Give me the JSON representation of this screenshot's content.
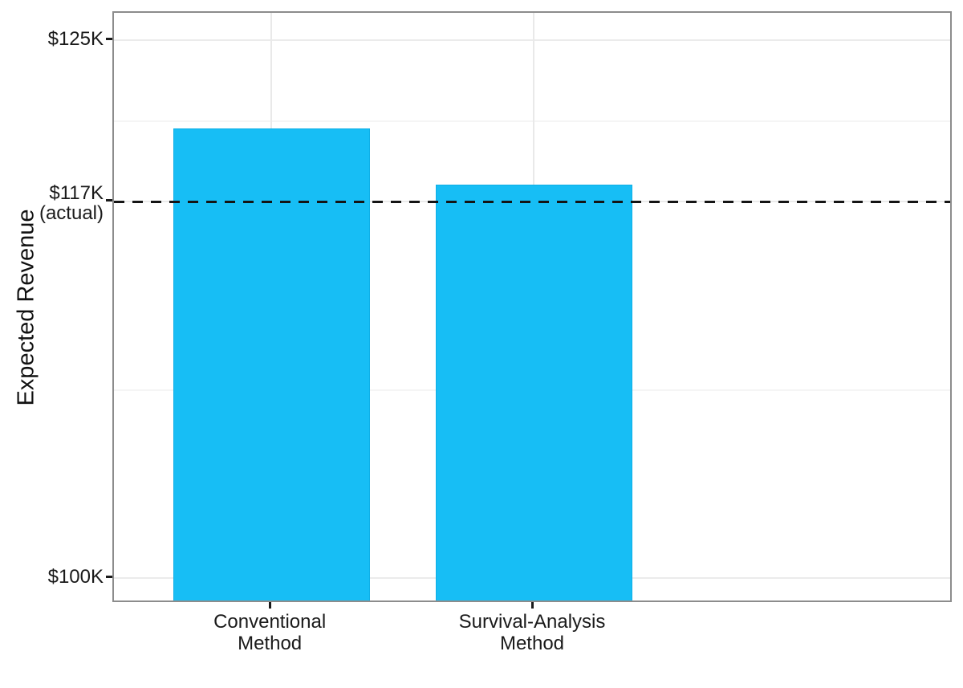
{
  "chart_data": {
    "type": "bar",
    "title": "",
    "xlabel": "",
    "ylabel": "Expected Revenue",
    "categories": [
      "Conventional\nMethod",
      "Survival-Analysis\nMethod"
    ],
    "values": [
      120.9,
      118.3
    ],
    "values_unit": "thousand dollars",
    "bar_color": "#17BEF5",
    "bar_edge_color": "#0fафe4",
    "y_ticks": [
      {
        "value": 100,
        "label": "$100K"
      },
      {
        "value": 117.5,
        "label": "$117K\n(actual)"
      },
      {
        "value": 125,
        "label": "$125K"
      }
    ],
    "y_minor_gridlines": [
      108.75,
      121.25
    ],
    "ylim": [
      98.8,
      126.3
    ],
    "reference_line": {
      "value": 117.5,
      "meaning": "actual revenue",
      "style": "dashed",
      "color": "#141414"
    },
    "grid": "major and minor horizontal, major vertical at categories",
    "legend": "none"
  }
}
